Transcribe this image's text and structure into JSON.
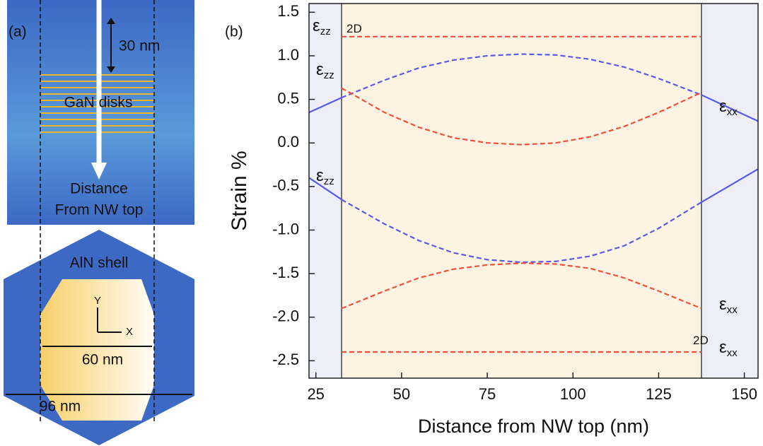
{
  "diagram": {
    "panel": "(a)",
    "spacing": "30 nm",
    "disks": "GaN disks",
    "arrow_label": [
      "Distance",
      "From NW top"
    ],
    "shell": "AlN shell",
    "axis_y": "Y",
    "axis_x": "X",
    "core_width": "60 nm",
    "shell_width": "96 nm"
  },
  "chart_data": {
    "type": "line",
    "panel": "(b)",
    "x_label": "Distance from NW top (nm)",
    "y_label": "Strain %",
    "xlim": [
      23,
      154
    ],
    "ylim": [
      -2.7,
      1.6
    ],
    "xticks": [
      25,
      50,
      75,
      100,
      125,
      150
    ],
    "yticks": [
      1.5,
      {
        "value": 1,
        "label": "1.0"
      },
      0.5,
      {
        "value": 0,
        "label": "0.0"
      },
      -0.5,
      {
        "value": -1,
        "label": "-1.0"
      },
      -1.5,
      {
        "value": -2,
        "label": "-2.0"
      },
      -2.5
    ],
    "boundaries": [
      32.5,
      137.5
    ],
    "outer_color": "#eceef8",
    "inner_color": "#fdf3e3",
    "series": [
      {
        "color": "#5a5ae6",
        "dash": false,
        "x": [
          23,
          32.5,
          85,
          137.5,
          154
        ],
        "values": [
          0.35,
          0.52,
          null,
          0.55,
          0.25
        ]
      },
      {
        "color": "#5a5ae6",
        "dash": false,
        "x": [
          23,
          32.5,
          85,
          137.5,
          154
        ],
        "values": [
          -0.4,
          -0.65,
          null,
          -0.68,
          -0.3
        ]
      },
      {
        "color": "#5a5ae6",
        "dash": true,
        "x": [
          32.5,
          45,
          55,
          65,
          75,
          85,
          95,
          105,
          115,
          125,
          137.5
        ],
        "values": [
          0.52,
          0.72,
          0.86,
          0.95,
          1.0,
          1.02,
          1.01,
          0.96,
          0.87,
          0.74,
          0.55
        ]
      },
      {
        "color": "#5a5ae6",
        "dash": true,
        "x": [
          32.5,
          45,
          55,
          65,
          75,
          85,
          95,
          105,
          115,
          125,
          137.5
        ],
        "values": [
          -0.65,
          -0.93,
          -1.12,
          -1.26,
          -1.34,
          -1.37,
          -1.36,
          -1.3,
          -1.18,
          -0.98,
          -0.68
        ]
      },
      {
        "color": "#f0503c",
        "dash": true,
        "x": [
          32.5,
          45,
          55,
          65,
          75,
          85,
          95,
          105,
          115,
          125,
          137.5
        ],
        "values": [
          0.63,
          0.35,
          0.18,
          0.06,
          0.0,
          -0.02,
          0.0,
          0.07,
          0.19,
          0.35,
          0.58
        ]
      },
      {
        "color": "#f0503c",
        "dash": true,
        "x": [
          32.5,
          45,
          55,
          65,
          75,
          85,
          95,
          105,
          115,
          125,
          137.5
        ],
        "values": [
          -1.9,
          -1.7,
          -1.55,
          -1.45,
          -1.4,
          -1.38,
          -1.39,
          -1.44,
          -1.55,
          -1.7,
          -1.9
        ]
      },
      {
        "color": "#f0503c",
        "dash": true,
        "x": [
          32.5,
          137.5
        ],
        "values": [
          1.22,
          1.22
        ]
      },
      {
        "color": "#f0503c",
        "dash": true,
        "x": [
          32.5,
          137.5
        ],
        "values": [
          -2.4,
          -2.4
        ]
      }
    ],
    "annotations": [
      {
        "text": "ε",
        "sub": "zz"
      },
      {
        "text": "2D"
      },
      {
        "text": "ε",
        "sub": "zz"
      },
      {
        "text": "ε",
        "sub": "xx"
      },
      {
        "text": "ε",
        "sub": "zz"
      },
      {
        "text": "ε",
        "sub": "xx"
      },
      {
        "text": "2D"
      },
      {
        "text": "ε",
        "sub": "xx"
      }
    ]
  }
}
